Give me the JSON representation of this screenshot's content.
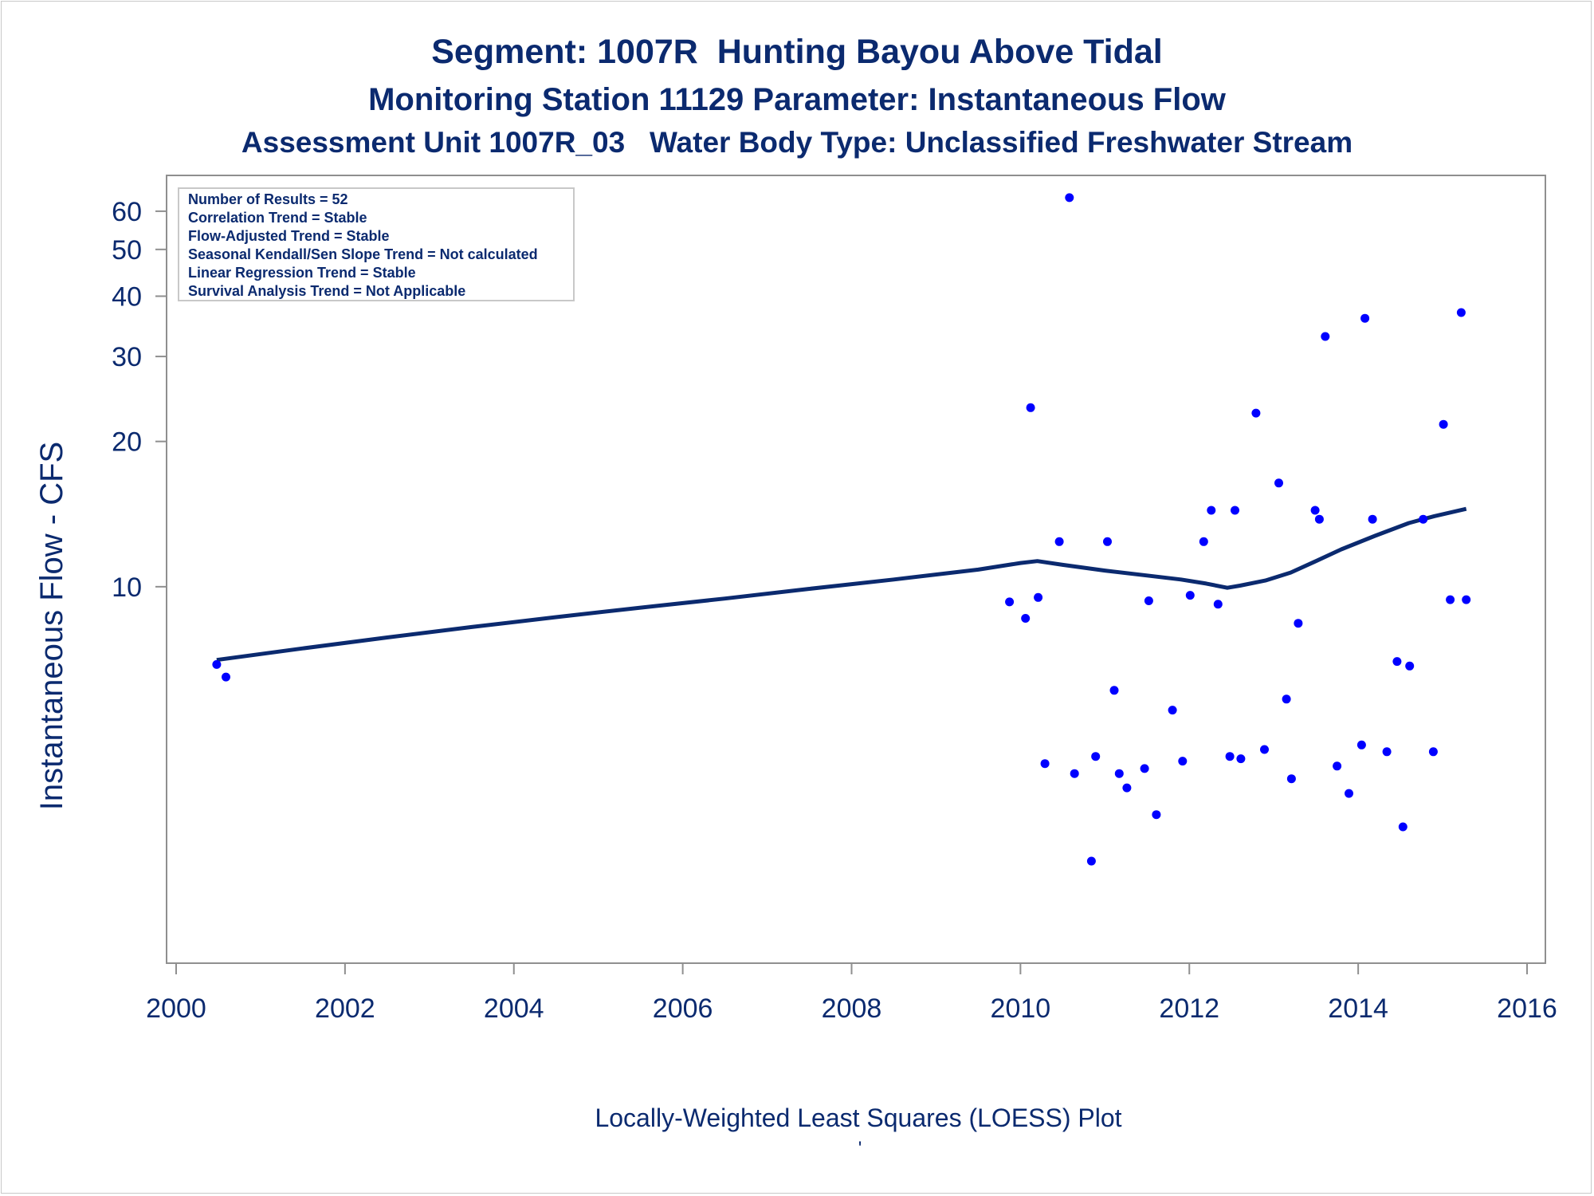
{
  "chart_data": {
    "type": "scatter",
    "title": "Segment: 1007R  Hunting Bayou Above Tidal",
    "subtitle": "Monitoring Station 11129 Parameter: Instantaneous Flow",
    "subtitle2": "Assessment Unit 1007R_03   Water Body Type: Unclassified Freshwater Stream",
    "xlabel": "",
    "ylabel": "Instantaneous Flow - CFS",
    "footnote": "Locally-Weighted Least Squares (LOESS) Plot",
    "footnote_mark": "'",
    "xlim": [
      2000,
      2016
    ],
    "ylim": [
      1.73,
      68
    ],
    "y_scale": "log",
    "x_ticks": [
      "2000",
      "2002",
      "2004",
      "2006",
      "2008",
      "2010",
      "2012",
      "2014",
      "2016"
    ],
    "y_ticks": [
      "10",
      "20",
      "30",
      "40",
      "50",
      "60"
    ],
    "grid": false,
    "stats_box": {
      "placement": "top-left",
      "lines": [
        "Number of Results = 52",
        "Correlation Trend = Stable",
        "Flow-Adjusted Trend = Stable",
        "Seasonal Kendall/Sen Slope Trend = Not calculated",
        "Linear Regression Trend = Stable",
        "Survival Analysis Trend = Not Applicable"
      ]
    },
    "series": [
      {
        "type": "scatter",
        "color": "#0000ff",
        "x": [
          2000.48,
          2000.59,
          2009.87,
          2010.06,
          2010.12,
          2010.21,
          2010.29,
          2010.46,
          2010.58,
          2010.64,
          2010.84,
          2010.89,
          2011.03,
          2011.11,
          2011.17,
          2011.26,
          2011.47,
          2011.52,
          2011.61,
          2011.8,
          2011.92,
          2012.01,
          2012.17,
          2012.26,
          2012.34,
          2012.48,
          2012.54,
          2012.61,
          2012.79,
          2012.89,
          2013.06,
          2013.15,
          2013.21,
          2013.29,
          2013.49,
          2013.54,
          2013.61,
          2013.75,
          2013.89,
          2014.04,
          2014.08,
          2014.17,
          2014.34,
          2014.46,
          2014.53,
          2014.61,
          2014.77,
          2014.89,
          2015.01,
          2015.09,
          2015.22,
          2015.28
        ],
        "y": [
          6.9,
          6.5,
          9.3,
          8.6,
          23.5,
          9.5,
          4.3,
          12.4,
          64.0,
          4.1,
          2.7,
          4.45,
          12.4,
          6.1,
          4.1,
          3.83,
          4.2,
          9.35,
          3.37,
          5.55,
          4.35,
          9.6,
          12.4,
          14.4,
          9.2,
          4.45,
          14.4,
          4.4,
          22.9,
          4.6,
          16.4,
          5.85,
          4.0,
          8.4,
          14.4,
          13.8,
          33.0,
          4.25,
          3.73,
          4.7,
          36.0,
          13.8,
          4.55,
          7.0,
          3.18,
          6.85,
          13.8,
          4.55,
          21.7,
          9.4,
          37.0,
          9.4
        ]
      },
      {
        "type": "line",
        "name": "LOESS",
        "color": "#0b2a6f",
        "x": [
          2000.48,
          2001.5,
          2002.5,
          2003.5,
          2004.5,
          2005.5,
          2006.5,
          2007.5,
          2008.5,
          2009.5,
          2010.0,
          2010.2,
          2010.5,
          2011.0,
          2011.5,
          2011.9,
          2012.2,
          2012.45,
          2012.6,
          2012.9,
          2013.2,
          2013.5,
          2013.8,
          2014.2,
          2014.6,
          2014.9,
          2015.28
        ],
        "y": [
          7.05,
          7.45,
          7.85,
          8.25,
          8.65,
          9.05,
          9.45,
          9.9,
          10.35,
          10.85,
          11.2,
          11.3,
          11.1,
          10.8,
          10.55,
          10.35,
          10.15,
          9.95,
          10.05,
          10.3,
          10.7,
          11.3,
          11.95,
          12.75,
          13.55,
          14.0,
          14.5
        ]
      }
    ]
  }
}
